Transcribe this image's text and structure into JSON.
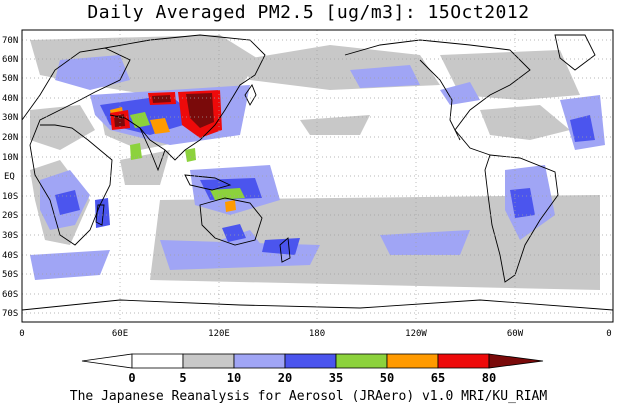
{
  "title": "Daily Averaged PM2.5 [ug/m3]: 15Oct2012",
  "footer": "The Japanese Reanalysis for Aerosol (JRAero) v1.0 MRI/KU_RIAM",
  "map": {
    "lat_labels": [
      "70N",
      "60N",
      "50N",
      "40N",
      "30N",
      "20N",
      "10N",
      "EQ",
      "10S",
      "20S",
      "30S",
      "40S",
      "50S",
      "60S",
      "70S"
    ],
    "lon_labels": [
      "0",
      "60E",
      "120E",
      "180",
      "120W",
      "60W",
      "0"
    ],
    "grid": "dotted"
  },
  "colorbar": {
    "levels": [
      "0",
      "5",
      "10",
      "20",
      "35",
      "50",
      "65",
      "80"
    ],
    "colors": [
      "#ffffff",
      "#ffffff",
      "#c8c8c8",
      "#a0a5f5",
      "#4b55ee",
      "#8cd23c",
      "#ff9a00",
      "#ee0a0a",
      "#7a0a0a"
    ]
  }
}
